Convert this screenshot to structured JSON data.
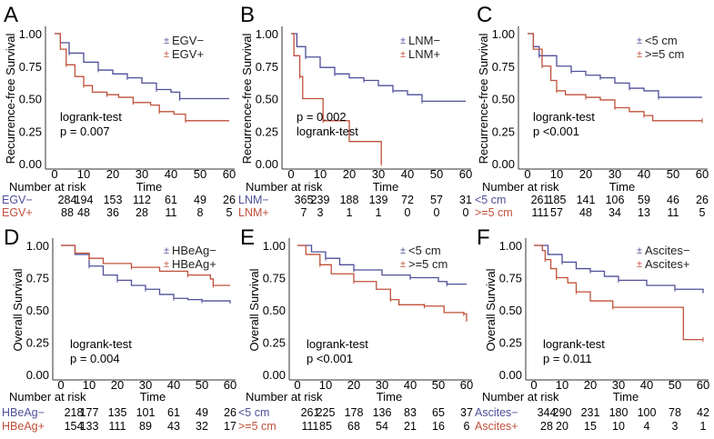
{
  "colors": {
    "group1": "#4f4f9a",
    "group2": "#c0503a",
    "axis": "#333333"
  },
  "chart_data": [
    {
      "panel_label": "A",
      "type": "line",
      "ylabel": "Recurrence-free Survival",
      "xlabel": "Time",
      "xticks": [
        0,
        10,
        20,
        30,
        40,
        50,
        60
      ],
      "yticks": [
        "0.00",
        "0.25",
        "0.50",
        "0.75",
        "1.00"
      ],
      "xlim": [
        0,
        60
      ],
      "ylim": [
        0,
        1
      ],
      "legend": [
        "EGV−",
        "EGV+"
      ],
      "annotation": [
        "logrank-test",
        "p = 0.007"
      ],
      "risk_title": "Number at risk",
      "series": [
        {
          "name": "EGV−",
          "points": [
            [
              0,
              1
            ],
            [
              2,
              0.93
            ],
            [
              5,
              0.85
            ],
            [
              10,
              0.78
            ],
            [
              15,
              0.72
            ],
            [
              20,
              0.69
            ],
            [
              25,
              0.66
            ],
            [
              30,
              0.62
            ],
            [
              35,
              0.57
            ],
            [
              40,
              0.55
            ],
            [
              43,
              0.5
            ],
            [
              60,
              0.5
            ]
          ],
          "at_risk": [
            284,
            194,
            153,
            112,
            61,
            49,
            26
          ]
        },
        {
          "name": "EGV+",
          "points": [
            [
              0,
              1
            ],
            [
              2,
              0.88
            ],
            [
              4,
              0.76
            ],
            [
              7,
              0.67
            ],
            [
              10,
              0.6
            ],
            [
              13,
              0.55
            ],
            [
              18,
              0.53
            ],
            [
              22,
              0.51
            ],
            [
              27,
              0.47
            ],
            [
              33,
              0.45
            ],
            [
              36,
              0.4
            ],
            [
              41,
              0.38
            ],
            [
              45,
              0.33
            ],
            [
              60,
              0.33
            ]
          ],
          "at_risk": [
            88,
            48,
            36,
            28,
            11,
            8,
            5
          ]
        }
      ]
    },
    {
      "panel_label": "B",
      "type": "line",
      "ylabel": "Recurrence-free Survival",
      "xlabel": "Time",
      "xticks": [
        0,
        10,
        20,
        30,
        40,
        50,
        60
      ],
      "yticks": [
        "0.00",
        "0.25",
        "0.50",
        "0.75",
        "1.00"
      ],
      "xlim": [
        0,
        60
      ],
      "ylim": [
        0,
        1
      ],
      "legend": [
        "LNM−",
        "LNM+"
      ],
      "annotation": [
        "p = 0.002",
        "logrank-test"
      ],
      "risk_title": "Number at risk",
      "series": [
        {
          "name": "LNM−",
          "points": [
            [
              0,
              1
            ],
            [
              2,
              0.9
            ],
            [
              5,
              0.82
            ],
            [
              10,
              0.74
            ],
            [
              15,
              0.69
            ],
            [
              20,
              0.66
            ],
            [
              25,
              0.64
            ],
            [
              30,
              0.6
            ],
            [
              35,
              0.56
            ],
            [
              40,
              0.53
            ],
            [
              45,
              0.48
            ],
            [
              60,
              0.48
            ]
          ],
          "at_risk": [
            365,
            239,
            188,
            139,
            72,
            57,
            31
          ]
        },
        {
          "name": "LNM+",
          "points": [
            [
              0,
              1
            ],
            [
              1,
              0.83
            ],
            [
              3,
              0.67
            ],
            [
              4,
              0.5
            ],
            [
              11,
              0.33
            ],
            [
              20,
              0.17
            ],
            [
              31,
              0
            ]
          ],
          "at_risk": [
            7,
            3,
            1,
            1,
            0,
            0,
            0
          ]
        }
      ]
    },
    {
      "panel_label": "C",
      "type": "line",
      "ylabel": "Recurrence-free Survival",
      "xlabel": "Time",
      "xticks": [
        0,
        10,
        20,
        30,
        40,
        50,
        60
      ],
      "yticks": [
        "0.00",
        "0.25",
        "0.50",
        "0.75",
        "1.00"
      ],
      "xlim": [
        0,
        60
      ],
      "ylim": [
        0,
        1
      ],
      "legend": [
        "<5 cm",
        ">=5 cm"
      ],
      "annotation": [
        "logrank-test",
        "p <0.001"
      ],
      "risk_title": "Number at risk",
      "series": [
        {
          "name": "<5 cm",
          "points": [
            [
              0,
              1
            ],
            [
              2,
              0.9
            ],
            [
              4,
              0.83
            ],
            [
              10,
              0.75
            ],
            [
              15,
              0.71
            ],
            [
              20,
              0.68
            ],
            [
              25,
              0.66
            ],
            [
              30,
              0.62
            ],
            [
              35,
              0.58
            ],
            [
              40,
              0.56
            ],
            [
              45,
              0.51
            ],
            [
              60,
              0.51
            ]
          ],
          "at_risk": [
            261,
            185,
            141,
            106,
            59,
            46,
            26
          ]
        },
        {
          "name": ">=5 cm",
          "points": [
            [
              0,
              1
            ],
            [
              2,
              0.88
            ],
            [
              5,
              0.75
            ],
            [
              8,
              0.64
            ],
            [
              10,
              0.56
            ],
            [
              13,
              0.53
            ],
            [
              20,
              0.51
            ],
            [
              25,
              0.49
            ],
            [
              30,
              0.43
            ],
            [
              35,
              0.4
            ],
            [
              40,
              0.37
            ],
            [
              43,
              0.33
            ],
            [
              60,
              0.33
            ]
          ],
          "at_risk": [
            111,
            57,
            48,
            34,
            13,
            11,
            5
          ]
        }
      ]
    },
    {
      "panel_label": "D",
      "type": "line",
      "ylabel": "Overall Survival",
      "xlabel": "Time",
      "xticks": [
        0,
        10,
        20,
        30,
        40,
        50,
        60
      ],
      "yticks": [
        "0.00",
        "0.25",
        "0.50",
        "0.75",
        "1.00"
      ],
      "xlim": [
        0,
        60
      ],
      "ylim": [
        0,
        1
      ],
      "legend": [
        "HBeAg−",
        "HBeAg+"
      ],
      "annotation": [
        "logrank-test",
        "p = 0.004"
      ],
      "risk_title": "Number at risk",
      "series": [
        {
          "name": "HBeAg−",
          "points": [
            [
              0,
              1
            ],
            [
              5,
              0.93
            ],
            [
              10,
              0.84
            ],
            [
              15,
              0.77
            ],
            [
              20,
              0.73
            ],
            [
              25,
              0.69
            ],
            [
              30,
              0.66
            ],
            [
              35,
              0.62
            ],
            [
              40,
              0.59
            ],
            [
              45,
              0.58
            ],
            [
              50,
              0.57
            ],
            [
              60,
              0.55
            ]
          ],
          "at_risk": [
            218,
            177,
            135,
            101,
            61,
            49,
            26
          ]
        },
        {
          "name": "HBeAg+",
          "points": [
            [
              0,
              1
            ],
            [
              5,
              0.94
            ],
            [
              10,
              0.9
            ],
            [
              15,
              0.86
            ],
            [
              25,
              0.83
            ],
            [
              35,
              0.8
            ],
            [
              45,
              0.77
            ],
            [
              53,
              0.74
            ],
            [
              54,
              0.69
            ],
            [
              60,
              0.69
            ]
          ],
          "at_risk": [
            154,
            133,
            111,
            89,
            43,
            32,
            17
          ]
        }
      ]
    },
    {
      "panel_label": "E",
      "type": "line",
      "ylabel": "Overall Survival",
      "xlabel": "Time",
      "xticks": [
        0,
        10,
        20,
        30,
        40,
        50,
        60
      ],
      "yticks": [
        "0.00",
        "0.25",
        "0.50",
        "0.75",
        "1.00"
      ],
      "xlim": [
        0,
        60
      ],
      "ylim": [
        0,
        1
      ],
      "legend": [
        "<5 cm",
        ">=5 cm"
      ],
      "annotation": [
        "logrank-test",
        "p <0.001"
      ],
      "risk_title": "Number at risk",
      "series": [
        {
          "name": "<5 cm",
          "points": [
            [
              0,
              1
            ],
            [
              5,
              0.95
            ],
            [
              10,
              0.9
            ],
            [
              15,
              0.85
            ],
            [
              20,
              0.81
            ],
            [
              30,
              0.77
            ],
            [
              40,
              0.75
            ],
            [
              50,
              0.72
            ],
            [
              53,
              0.7
            ],
            [
              60,
              0.7
            ]
          ],
          "at_risk": [
            261,
            225,
            178,
            136,
            83,
            65,
            37
          ]
        },
        {
          "name": ">=5 cm",
          "points": [
            [
              0,
              1
            ],
            [
              3,
              0.93
            ],
            [
              8,
              0.85
            ],
            [
              12,
              0.78
            ],
            [
              20,
              0.72
            ],
            [
              28,
              0.66
            ],
            [
              33,
              0.58
            ],
            [
              36,
              0.54
            ],
            [
              45,
              0.53
            ],
            [
              52,
              0.48
            ],
            [
              59,
              0.47
            ],
            [
              60,
              0.41
            ]
          ],
          "at_risk": [
            111,
            85,
            68,
            54,
            21,
            16,
            6
          ]
        }
      ]
    },
    {
      "panel_label": "F",
      "type": "line",
      "ylabel": "Overall Survival",
      "xlabel": "Time",
      "xticks": [
        0,
        10,
        20,
        30,
        40,
        50,
        60
      ],
      "yticks": [
        "0.00",
        "0.25",
        "0.50",
        "0.75",
        "1.00"
      ],
      "xlim": [
        0,
        60
      ],
      "ylim": [
        0,
        1
      ],
      "legend": [
        "Ascites−",
        "Ascites+"
      ],
      "annotation": [
        "logrank-test",
        "p = 0.011"
      ],
      "risk_title": "Number at risk",
      "series": [
        {
          "name": "Ascites−",
          "points": [
            [
              0,
              1
            ],
            [
              5,
              0.93
            ],
            [
              10,
              0.87
            ],
            [
              15,
              0.82
            ],
            [
              20,
              0.8
            ],
            [
              25,
              0.76
            ],
            [
              30,
              0.73
            ],
            [
              40,
              0.69
            ],
            [
              50,
              0.66
            ],
            [
              60,
              0.63
            ]
          ],
          "at_risk": [
            344,
            290,
            231,
            180,
            100,
            78,
            42
          ]
        },
        {
          "name": "Ascites+",
          "points": [
            [
              0,
              1
            ],
            [
              3,
              0.96
            ],
            [
              4,
              0.89
            ],
            [
              6,
              0.82
            ],
            [
              8,
              0.75
            ],
            [
              12,
              0.71
            ],
            [
              15,
              0.64
            ],
            [
              20,
              0.57
            ],
            [
              28,
              0.52
            ],
            [
              53,
              0.27
            ],
            [
              60,
              0.27
            ]
          ],
          "at_risk": [
            28,
            20,
            15,
            10,
            4,
            3,
            1
          ]
        }
      ]
    }
  ]
}
